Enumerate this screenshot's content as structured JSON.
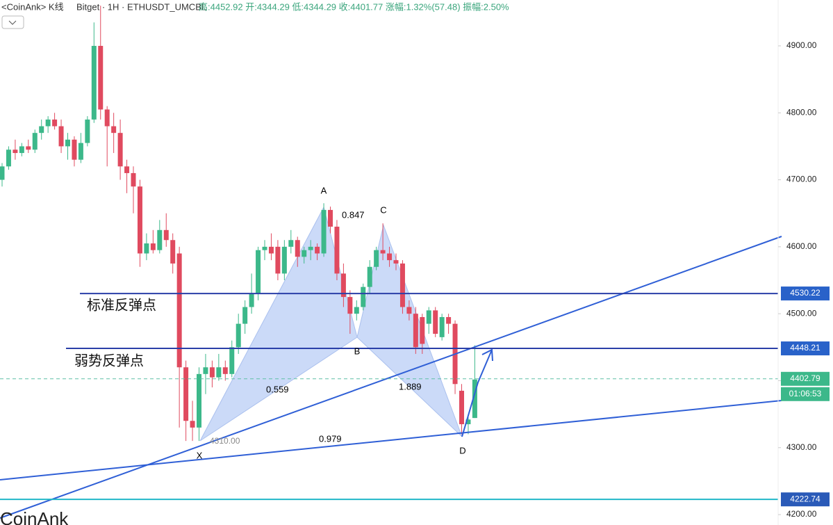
{
  "chart_data": {
    "type": "candlestick",
    "header": {
      "source": "<CoinAnk> K线",
      "symbol": "Bitget · 1H · ETHUSDT_UMCBL",
      "stats": "高:4452.92 开:4344.29 低:4344.29 收:4401.77 涨幅:1.32%(57.48) 振幅:2.50%"
    },
    "up_color": "#3cb88a",
    "down_color": "#e04a5f",
    "ylim": [
      4184.5,
      4968.5
    ],
    "yticks": [
      {
        "value": 4900,
        "label": "4900.00"
      },
      {
        "value": 4800,
        "label": "4800.00"
      },
      {
        "value": 4700,
        "label": "4700.00"
      },
      {
        "value": 4600,
        "label": "4600.00"
      },
      {
        "value": 4500,
        "label": "4500.00"
      },
      {
        "value": 4400,
        "label": "4400.00"
      },
      {
        "value": 4300,
        "label": "4300.00"
      },
      {
        "value": 4200,
        "label": "4200.00"
      }
    ],
    "open": [
      4700,
      4720,
      4745,
      4740,
      4750,
      4745,
      4770,
      4780,
      4790,
      4780,
      4750,
      4760,
      4730,
      4755,
      4790,
      4900,
      4805,
      4780,
      4770,
      4720,
      4710,
      4690,
      4590,
      4605,
      4595,
      4625,
      4610,
      4590,
      4420,
      4340,
      4330,
      4410,
      4420,
      4405,
      4420,
      4410,
      4450,
      4485,
      4510,
      4530,
      4595,
      4600,
      4600,
      4560,
      4600,
      4610,
      4585,
      4595,
      4600,
      4590,
      4655,
      4630,
      4560,
      4525,
      4500,
      4510,
      4540,
      4570,
      4595,
      4590,
      4580,
      4575,
      4510,
      4500,
      4495,
      4485,
      4505,
      4465,
      4495,
      4485,
      4385,
      4335,
      4344.29
    ],
    "high": [
      4725,
      4750,
      4760,
      4755,
      4760,
      4775,
      4790,
      4795,
      4800,
      4790,
      4770,
      4765,
      4770,
      4795,
      4935,
      4960,
      4810,
      4800,
      4790,
      4730,
      4720,
      4700,
      4620,
      4625,
      4640,
      4650,
      4620,
      4600,
      4430,
      4370,
      4420,
      4440,
      4430,
      4440,
      4430,
      4460,
      4500,
      4520,
      4560,
      4600,
      4610,
      4620,
      4610,
      4610,
      4625,
      4615,
      4600,
      4610,
      4605,
      4665,
      4660,
      4640,
      4575,
      4535,
      4520,
      4545,
      4580,
      4600,
      4635,
      4600,
      4590,
      4580,
      4520,
      4510,
      4500,
      4510,
      4510,
      4500,
      4500,
      4490,
      4395,
      4350,
      4452.92
    ],
    "low": [
      4690,
      4715,
      4730,
      4735,
      4740,
      4740,
      4760,
      4770,
      4775,
      4740,
      4730,
      4720,
      4725,
      4750,
      4785,
      4790,
      4720,
      4740,
      4700,
      4680,
      4650,
      4570,
      4580,
      4590,
      4590,
      4600,
      4560,
      4330,
      4310,
      4310,
      4310,
      4380,
      4390,
      4400,
      4400,
      4405,
      4440,
      4470,
      4500,
      4520,
      4580,
      4580,
      4550,
      4550,
      4590,
      4570,
      4575,
      4580,
      4580,
      4585,
      4620,
      4550,
      4510,
      4470,
      4490,
      4505,
      4530,
      4565,
      4580,
      4570,
      4565,
      4500,
      4490,
      4440,
      4440,
      4470,
      4465,
      4460,
      4470,
      4380,
      4320,
      4320,
      4344.29
    ],
    "close": [
      4720,
      4745,
      4740,
      4750,
      4745,
      4770,
      4780,
      4790,
      4780,
      4750,
      4760,
      4730,
      4755,
      4790,
      4900,
      4805,
      4780,
      4770,
      4720,
      4710,
      4690,
      4590,
      4605,
      4595,
      4625,
      4610,
      4575,
      4420,
      4340,
      4330,
      4410,
      4420,
      4405,
      4420,
      4410,
      4450,
      4485,
      4510,
      4530,
      4595,
      4600,
      4590,
      4560,
      4600,
      4610,
      4585,
      4595,
      4600,
      4590,
      4655,
      4630,
      4560,
      4525,
      4500,
      4510,
      4540,
      4570,
      4595,
      4590,
      4580,
      4575,
      4510,
      4500,
      4450,
      4455,
      4505,
      4470,
      4495,
      4485,
      4395,
      4335,
      4342,
      4401.77
    ],
    "price_lines": [
      {
        "value": 4530.22,
        "color": "#2a3fa8",
        "label_color": "#2962c9"
      },
      {
        "value": 4448.21,
        "color": "#2a3fa8",
        "label_color": "#2962c9"
      },
      {
        "value": 4402.79,
        "color": "#5fbfa6",
        "label_color": "#3cb88a",
        "dashed": true,
        "countdown": "01:06:53"
      },
      {
        "value": 4222.74,
        "color": "#21b7c8",
        "label_color": "#2a5ab8"
      }
    ],
    "annotations": {
      "strong": "标准反弹点",
      "weak": "弱势反弹点",
      "X": "X",
      "A": "A",
      "B": "B",
      "C": "C",
      "D": "D",
      "xa": "0.559",
      "ab": "0.847",
      "bc": "1.889",
      "xd": "0.979",
      "low": "4310.00",
      "watermark": "CoinAnk"
    }
  }
}
